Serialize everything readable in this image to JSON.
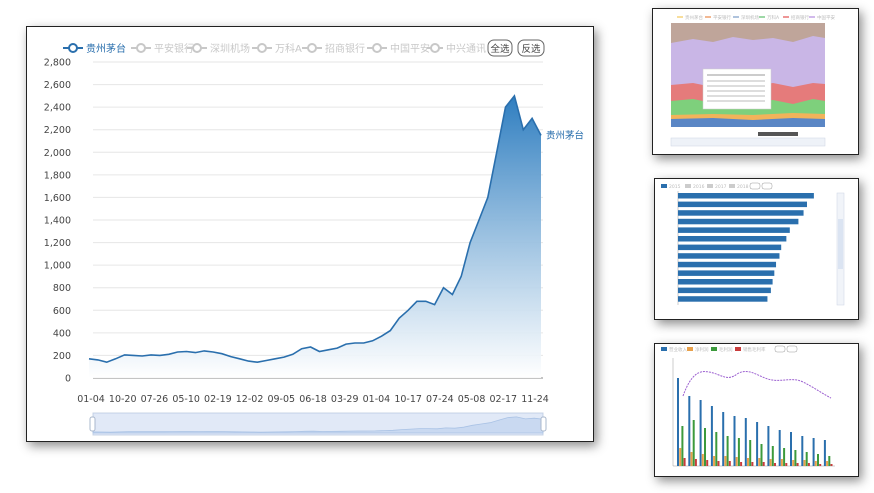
{
  "main": {
    "legend": {
      "items": [
        {
          "label": "贵州茅台",
          "active": true
        },
        {
          "label": "平安银行",
          "active": false
        },
        {
          "label": "深圳机场",
          "active": false
        },
        {
          "label": "万科A",
          "active": false
        },
        {
          "label": "招商银行",
          "active": false
        },
        {
          "label": "中国平安",
          "active": false
        },
        {
          "label": "中兴通讯",
          "active": false
        }
      ],
      "select_all_label": "全选",
      "invert_label": "反选"
    },
    "series_end_label": "贵州茅台",
    "colors": {
      "line": "#2a6fad",
      "fill_top": "#2f7ec0",
      "fill_bottom": "#ffffff"
    }
  },
  "chart_data": {
    "type": "area",
    "title": "",
    "xlabel": "",
    "ylabel": "",
    "ylim": [
      0,
      2800
    ],
    "y_ticks": [
      "0",
      "200",
      "400",
      "600",
      "800",
      "1,000",
      "1,200",
      "1,400",
      "1,600",
      "1,800",
      "2,000",
      "2,200",
      "2,400",
      "2,600",
      "2,800"
    ],
    "x_ticks": [
      "01-04",
      "10-20",
      "07-26",
      "05-10",
      "02-19",
      "12-02",
      "09-05",
      "06-18",
      "03-29",
      "01-04",
      "10-17",
      "07-24",
      "05-08",
      "02-17",
      "11-24"
    ],
    "grid": true,
    "legend_position": "top",
    "series": [
      {
        "name": "贵州茅台",
        "values": [
          170,
          160,
          140,
          170,
          205,
          200,
          195,
          205,
          200,
          210,
          230,
          235,
          225,
          240,
          230,
          215,
          190,
          170,
          150,
          140,
          155,
          170,
          185,
          210,
          260,
          275,
          235,
          250,
          265,
          300,
          310,
          310,
          330,
          370,
          420,
          530,
          600,
          680,
          680,
          650,
          800,
          740,
          900,
          1200,
          1400,
          1600,
          2000,
          2400,
          2500,
          2200,
          2300,
          2150
        ]
      }
    ]
  },
  "thumbnails": [
    {
      "legend": [
        "贵州茅台",
        "平安银行",
        "深圳机场",
        "万科A",
        "招商银行",
        "中国平安",
        "中兴通讯"
      ]
    },
    {
      "legend": [
        "2015",
        "2016",
        "2017",
        "2018"
      ],
      "buttons": [
        "全选",
        "反选"
      ]
    },
    {
      "legend": [
        "营业收入",
        "净利润",
        "毛利润",
        "销售毛利率",
        "销售净利率"
      ],
      "buttons": [
        "全选",
        "反选"
      ]
    }
  ]
}
